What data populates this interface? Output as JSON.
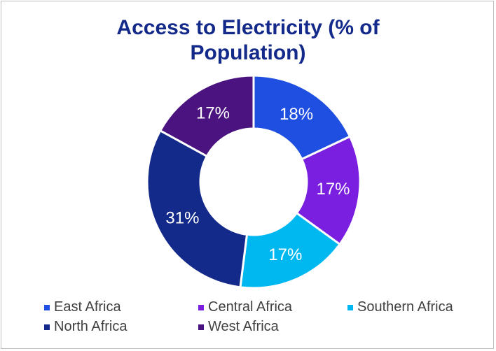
{
  "chart_data": {
    "type": "pie",
    "donut": true,
    "title": "Access to Electricity (% of Population)",
    "title_lines": [
      "Access to Electricity (% of",
      "Population)"
    ],
    "categories": [
      "East Africa",
      "Central Africa",
      "Southern Africa",
      "North Africa",
      "West Africa"
    ],
    "values": [
      18,
      17,
      17,
      31,
      17
    ],
    "labels": [
      "18%",
      "17%",
      "17%",
      "31%",
      "17%"
    ],
    "colors": [
      "#1f4fe0",
      "#7a1fe0",
      "#00b8f0",
      "#142a8a",
      "#4b137f"
    ],
    "legend": {
      "position": "bottom",
      "rows": [
        [
          "East Africa",
          "Central Africa",
          "Southern Africa"
        ],
        [
          "North Africa",
          "West Africa"
        ]
      ]
    }
  }
}
